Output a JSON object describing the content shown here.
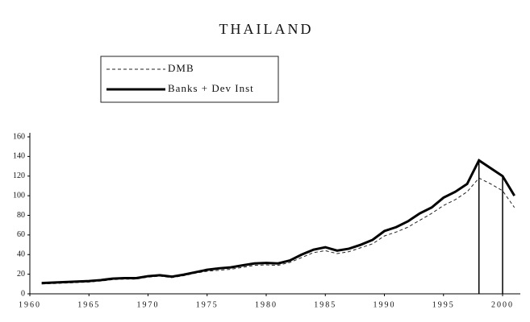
{
  "chart_data": {
    "type": "line",
    "title": "THAILAND",
    "x": [
      1961,
      1962,
      1963,
      1964,
      1965,
      1966,
      1967,
      1968,
      1969,
      1970,
      1971,
      1972,
      1973,
      1974,
      1975,
      1976,
      1977,
      1978,
      1979,
      1980,
      1981,
      1982,
      1983,
      1984,
      1985,
      1986,
      1987,
      1988,
      1989,
      1990,
      1991,
      1992,
      1993,
      1994,
      1995,
      1996,
      1997,
      1998,
      1999,
      2000,
      2001
    ],
    "series": [
      {
        "name": "DMB",
        "color": "#222222",
        "dash": true,
        "values": [
          10,
          10.5,
          11,
          11.5,
          12,
          13,
          14.5,
          15,
          15,
          17,
          18,
          16.5,
          18.5,
          21,
          23,
          24,
          25,
          27,
          29,
          29.5,
          29,
          32,
          37,
          42,
          44,
          41,
          43,
          47,
          51,
          59,
          63,
          68,
          75,
          82,
          90,
          96,
          104,
          118,
          112,
          105,
          88
        ]
      },
      {
        "name": "Banks + Dev Inst",
        "color": "#000000",
        "dash": false,
        "values": [
          11,
          11.5,
          12,
          12.5,
          13,
          14,
          15.5,
          16,
          16,
          18,
          19,
          17.5,
          19.5,
          22,
          24.5,
          26,
          27,
          29,
          31,
          31.5,
          31,
          34,
          40,
          45,
          47.5,
          44,
          46,
          50,
          55,
          64,
          68,
          74,
          82,
          88,
          98,
          104,
          112,
          136,
          128,
          120,
          100
        ]
      }
    ],
    "vlines": [
      1998,
      2000
    ],
    "xlim": [
      1960,
      2001.5
    ],
    "xticks": [
      1960,
      1965,
      1970,
      1975,
      1980,
      1985,
      1990,
      1995,
      2000
    ],
    "ylim": [
      0,
      160
    ],
    "yticks": [
      0,
      20,
      40,
      60,
      80,
      100,
      120,
      140,
      160
    ]
  }
}
